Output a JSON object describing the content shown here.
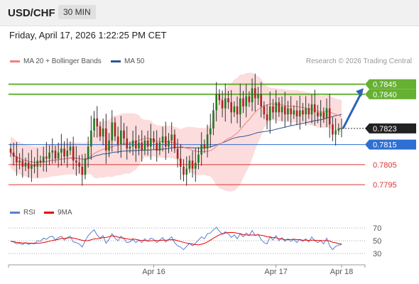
{
  "header": {
    "symbol": "USD/CHF",
    "timeframe": "30 MIN",
    "datetime": "Friday, April 17, 2026 1:22:25 PM CET"
  },
  "legend": {
    "ma20": {
      "label": "MA 20 + Bollinger Bands",
      "color": "#f08080"
    },
    "ma50": {
      "label": "MA 50",
      "color": "#2f5597"
    },
    "rsi": {
      "label": "RSI",
      "color": "#5b7fd0"
    },
    "rsi_ma": {
      "label": "9MA",
      "color": "#e60000"
    }
  },
  "copyright": "Research © 2026 Trading Central",
  "chart_data": {
    "type": "candlestick",
    "instrument": "USD/CHF",
    "timeframe": "30 MIN",
    "x_ticks": [
      "Apr 16",
      "Apr 17",
      "Apr 18"
    ],
    "y_range": [
      0.7788,
      0.7853
    ],
    "levels": [
      {
        "label": "0.7845",
        "value": 0.7845,
        "style": "resistance",
        "color": "#66b032"
      },
      {
        "label": "0.7840",
        "value": 0.784,
        "style": "resistance",
        "color": "#66b032"
      },
      {
        "label": "0.7823",
        "value": 0.7823,
        "style": "last-price",
        "color": "#222222"
      },
      {
        "label": "0.7815",
        "value": 0.7815,
        "style": "pivot",
        "color": "#2d6fd2"
      },
      {
        "label": "0.7805",
        "value": 0.7805,
        "style": "support",
        "color": "#e03030"
      },
      {
        "label": "0.7795",
        "value": 0.7795,
        "style": "support",
        "color": "#e03030"
      }
    ],
    "forecast_arrow": {
      "from": 0.7823,
      "to": 0.7843
    },
    "closes": [
      0.7811,
      0.7809,
      0.7806,
      0.7807,
      0.7804,
      0.7806,
      0.7803,
      0.7805,
      0.7804,
      0.7807,
      0.7806,
      0.7809,
      0.7808,
      0.7811,
      0.7812,
      0.7808,
      0.7811,
      0.7813,
      0.7809,
      0.7812,
      0.7814,
      0.7807,
      0.7806,
      0.7804,
      0.78,
      0.7808,
      0.7814,
      0.7822,
      0.7828,
      0.7824,
      0.7819,
      0.7823,
      0.7812,
      0.7817,
      0.7826,
      0.7819,
      0.7815,
      0.7822,
      0.7818,
      0.7813,
      0.7814,
      0.7817,
      0.7813,
      0.7816,
      0.7812,
      0.7817,
      0.7814,
      0.7818,
      0.7816,
      0.7812,
      0.7816,
      0.7819,
      0.7814,
      0.7817,
      0.782,
      0.7813,
      0.7808,
      0.7804,
      0.78,
      0.7803,
      0.7807,
      0.7803,
      0.7806,
      0.781,
      0.7815,
      0.7813,
      0.782,
      0.7823,
      0.7832,
      0.784,
      0.7837,
      0.7833,
      0.7838,
      0.7836,
      0.7831,
      0.7834,
      0.783,
      0.7838,
      0.7834,
      0.7839,
      0.7836,
      0.7843,
      0.7838,
      0.784,
      0.7834,
      0.783,
      0.7827,
      0.7834,
      0.7831,
      0.7836,
      0.7831,
      0.7834,
      0.783,
      0.7833,
      0.783,
      0.7832,
      0.7829,
      0.7832,
      0.783,
      0.7833,
      0.783,
      0.7835,
      0.7831,
      0.7829,
      0.7831,
      0.7828,
      0.7833,
      0.7825,
      0.782,
      0.7822,
      0.7823,
      0.7823
    ],
    "rsi": {
      "ticks": [
        70,
        50,
        30
      ],
      "range": [
        20,
        80
      ],
      "values": [
        49,
        48,
        45,
        46,
        44,
        47,
        44,
        46,
        45,
        50,
        49,
        54,
        52,
        56,
        57,
        51,
        55,
        57,
        51,
        55,
        57,
        48,
        47,
        45,
        40,
        50,
        58,
        63,
        67,
        59,
        54,
        58,
        46,
        52,
        61,
        54,
        50,
        57,
        53,
        47,
        48,
        52,
        47,
        51,
        47,
        53,
        49,
        54,
        52,
        47,
        51,
        55,
        48,
        52,
        56,
        47,
        42,
        40,
        36,
        41,
        46,
        42,
        46,
        51,
        56,
        53,
        61,
        62,
        67,
        71,
        65,
        60,
        64,
        61,
        55,
        59,
        53,
        61,
        56,
        62,
        58,
        66,
        58,
        60,
        52,
        47,
        45,
        56,
        51,
        58,
        50,
        55,
        49,
        53,
        49,
        52,
        47,
        52,
        49,
        53,
        48,
        56,
        50,
        47,
        50,
        45,
        54,
        42,
        36,
        41,
        43,
        44
      ]
    }
  }
}
